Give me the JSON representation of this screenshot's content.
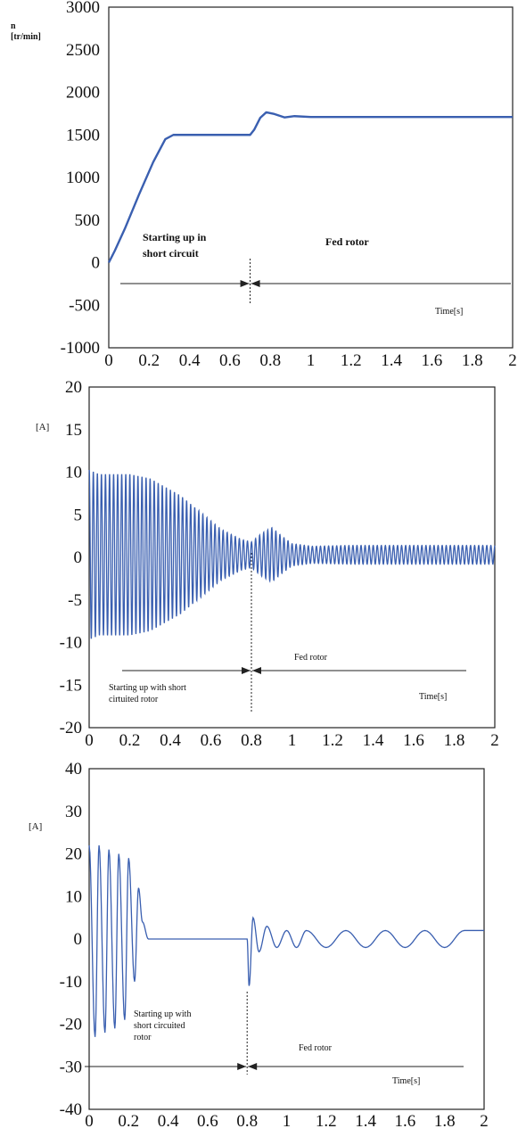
{
  "chart_data": [
    {
      "type": "line",
      "ylabel": "n [tr/min]",
      "xlabel": "Time[s]",
      "xlim": [
        0,
        2
      ],
      "ylim": [
        -1000,
        3000
      ],
      "x_ticks": [
        "0",
        "0.2",
        "0.4",
        "0.6",
        "0.8",
        "1",
        "1.2",
        "1.4",
        "1.6",
        "1.8",
        "2"
      ],
      "y_ticks": [
        "3000",
        "2500",
        "2000",
        "1500",
        "1000",
        "500",
        "0",
        "-500",
        "-1000"
      ],
      "annotations": {
        "left": [
          "Starting up in",
          "short circuit"
        ],
        "right": [
          "Fed rotor"
        ]
      },
      "divider_x": 0.7,
      "series": [
        {
          "x": [
            0,
            0.03,
            0.08,
            0.15,
            0.22,
            0.28,
            0.32,
            0.4,
            0.5,
            0.6,
            0.7,
            0.72,
            0.75,
            0.78,
            0.82,
            0.87,
            0.92,
            1.0,
            1.2,
            1.5,
            2.0
          ],
          "y": [
            0,
            140,
            400,
            800,
            1180,
            1450,
            1500,
            1500,
            1500,
            1500,
            1500,
            1560,
            1700,
            1765,
            1745,
            1705,
            1720,
            1710,
            1710,
            1710,
            1710
          ]
        }
      ]
    },
    {
      "type": "line",
      "ylabel": "[A]",
      "xlabel": "Time[s]",
      "xlim": [
        0,
        2
      ],
      "ylim": [
        -20,
        20
      ],
      "x_ticks": [
        "0",
        "0.2",
        "0.4",
        "0.6",
        "0.8",
        "1",
        "1.2",
        "1.4",
        "1.6",
        "1.8",
        "2"
      ],
      "y_ticks": [
        "20",
        "15",
        "10",
        "5",
        "0",
        "-5",
        "-10",
        "-15",
        "-20"
      ],
      "annotations": {
        "left": [
          "Starting up with short",
          "cirtuited rotor"
        ],
        "right": [
          "Fed rotor"
        ]
      },
      "divider_x": 0.8,
      "series": [
        {
          "frequency_hz": 50,
          "offset": 0.3,
          "envelope_x": [
            0,
            0.05,
            0.2,
            0.3,
            0.45,
            0.55,
            0.65,
            0.75,
            0.8,
            0.85,
            0.9,
            0.95,
            1.0,
            1.1,
            1.3,
            2.0
          ],
          "envelope_amp": [
            10,
            9.5,
            9.5,
            9,
            7,
            5,
            3,
            1.8,
            1.5,
            2.5,
            3.2,
            2.2,
            1.3,
            1.0,
            1.1,
            1.1
          ]
        }
      ]
    },
    {
      "type": "line",
      "ylabel": "[A]",
      "xlabel": "Time[s]",
      "xlim": [
        0,
        2
      ],
      "ylim": [
        -40,
        40
      ],
      "x_ticks": [
        "0",
        "0.2",
        "0.4",
        "0.6",
        "0.8",
        "1",
        "1.2",
        "1.4",
        "1.6",
        "1.8",
        "2"
      ],
      "y_ticks": [
        "40",
        "30",
        "20",
        "10",
        "0",
        "-10",
        "-20",
        "-30",
        "-40"
      ],
      "annotations": {
        "left": [
          "Starting up with",
          "short circuited",
          "rotor"
        ],
        "right": [
          "Fed rotor"
        ]
      },
      "divider_x": 0.8,
      "series": [
        {
          "x": [
            0.0,
            0.03,
            0.05,
            0.08,
            0.1,
            0.13,
            0.15,
            0.18,
            0.2,
            0.23,
            0.25,
            0.27,
            0.3,
            0.4,
            0.5,
            0.6,
            0.7,
            0.8,
            0.81,
            0.83,
            0.86,
            0.9,
            0.95,
            1.0,
            1.05,
            1.1,
            1.2,
            1.3,
            1.4,
            1.5,
            1.6,
            1.7,
            1.8,
            1.9,
            2.0
          ],
          "y": [
            22,
            -23,
            22,
            -22,
            21,
            -21,
            20,
            -19,
            19,
            -10,
            12,
            4,
            0,
            0,
            0,
            0,
            0,
            0,
            -11,
            5,
            -3,
            3,
            -2,
            2,
            -2,
            2,
            -2,
            2,
            -2,
            2,
            -2,
            2,
            -2,
            2,
            2
          ]
        }
      ]
    }
  ]
}
